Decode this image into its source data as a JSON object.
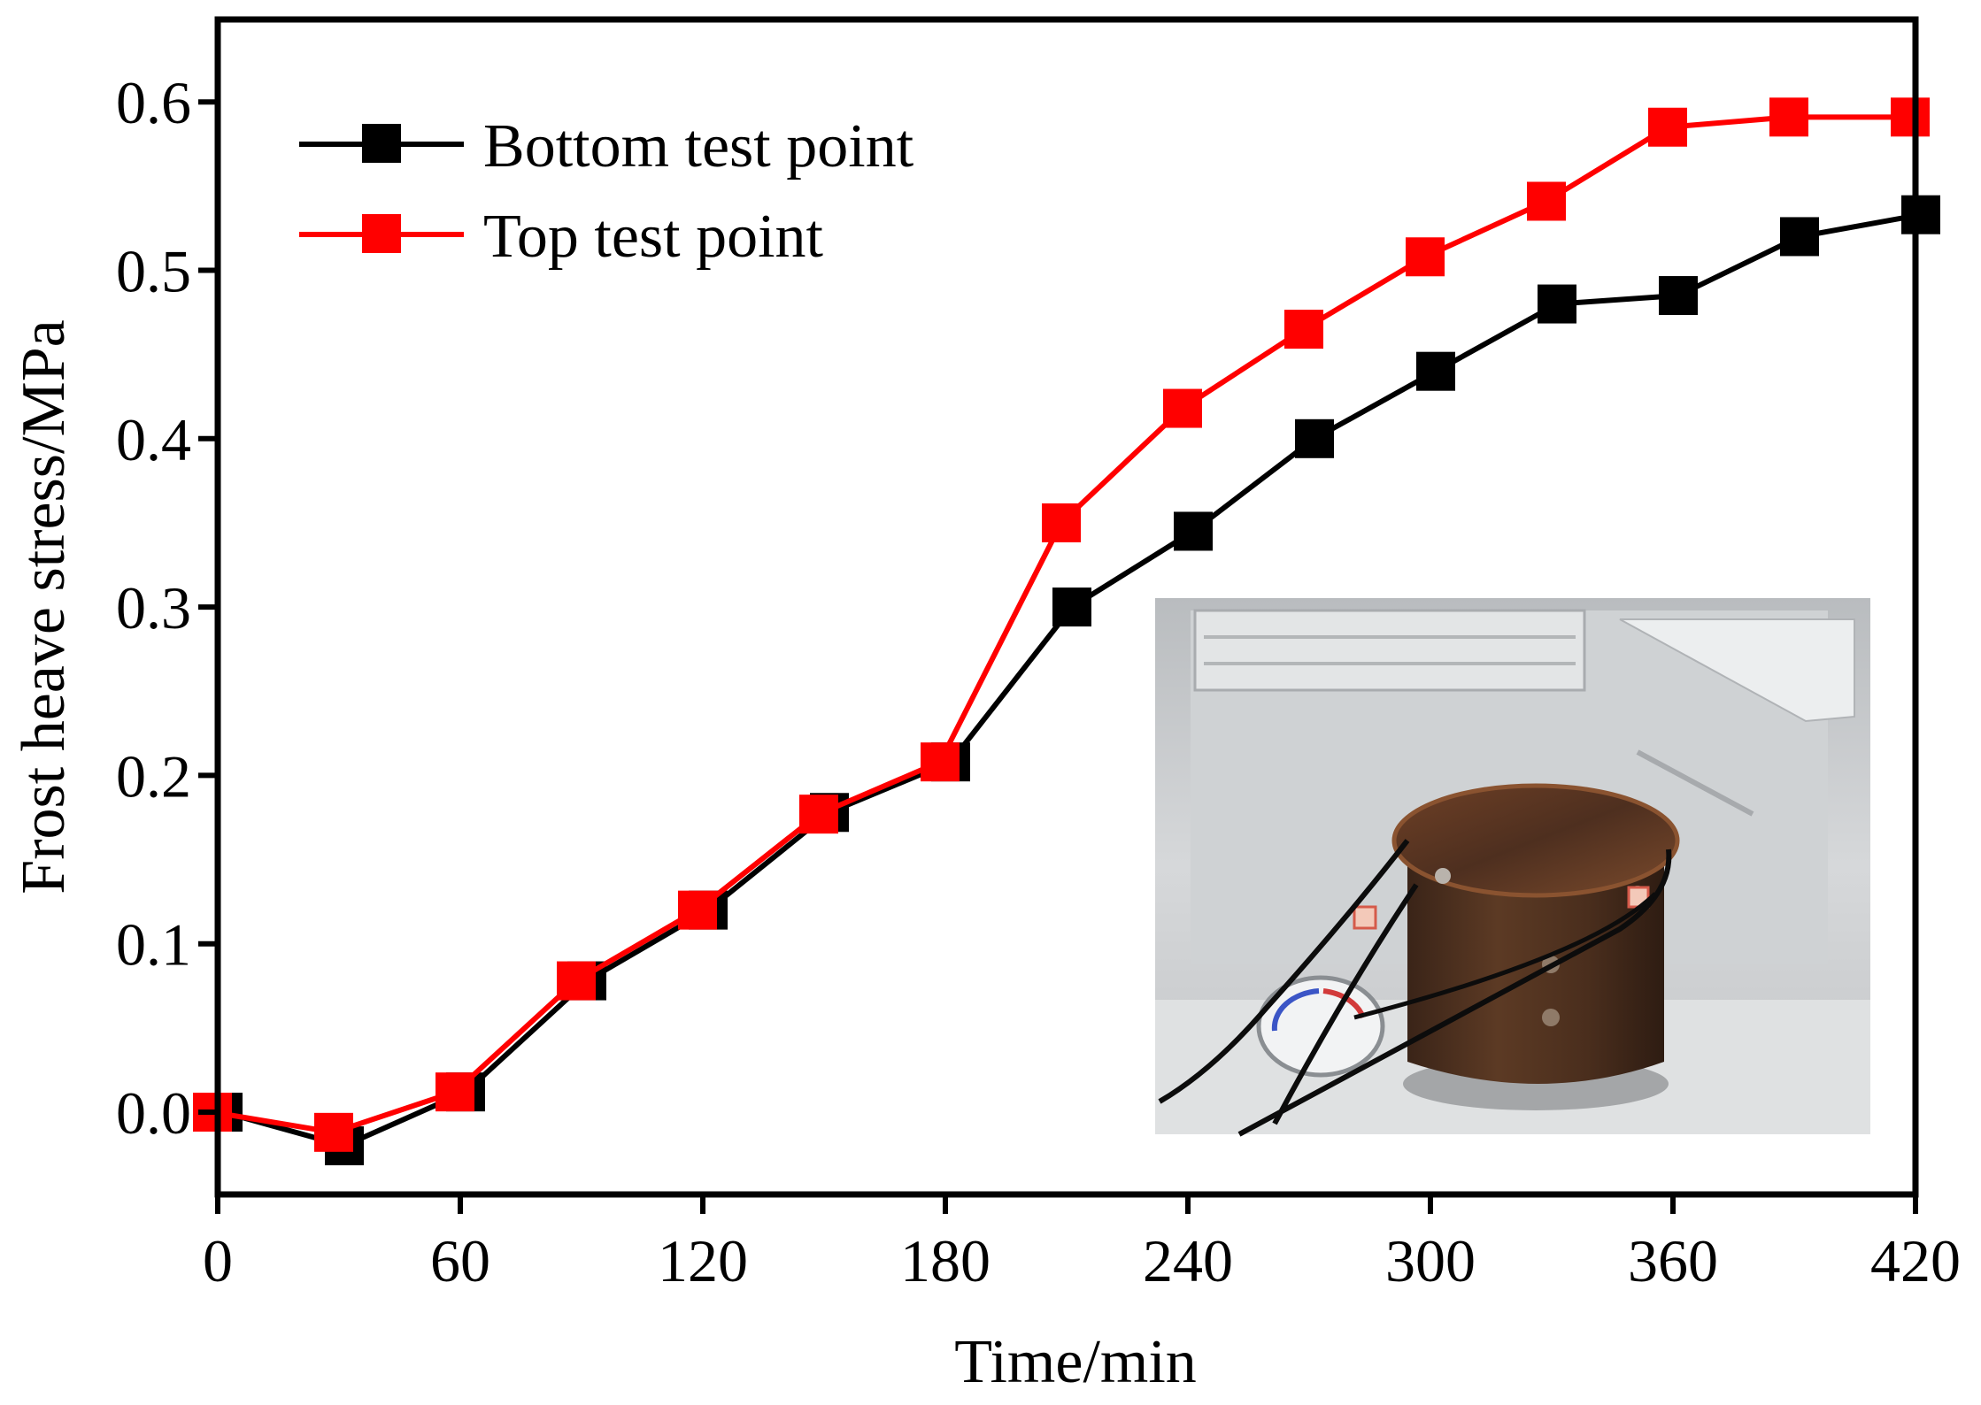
{
  "chart_data": {
    "type": "line",
    "xlabel": "Time/min",
    "ylabel": "Frost heave stress/MPa",
    "xlim": [
      0,
      420
    ],
    "ylim": [
      -0.05,
      0.65
    ],
    "xticks": [
      0,
      60,
      120,
      180,
      240,
      300,
      360,
      420
    ],
    "yticks": [
      0.0,
      0.1,
      0.2,
      0.3,
      0.4,
      0.5,
      0.6
    ],
    "xtick_labels": [
      "0",
      "60",
      "120",
      "180",
      "240",
      "300",
      "360",
      "420"
    ],
    "ytick_labels": [
      "0.0",
      "0.1",
      "0.2",
      "0.3",
      "0.4",
      "0.5",
      "0.6"
    ],
    "grid": false,
    "legend_position": "top-left",
    "series": [
      {
        "name": "Bottom test point",
        "color": "#000000",
        "marker": "square",
        "x": [
          0,
          30,
          60,
          90,
          120,
          150,
          180,
          210,
          240,
          270,
          300,
          330,
          360,
          390,
          420
        ],
        "y": [
          0.0,
          -0.02,
          0.012,
          0.078,
          0.12,
          0.178,
          0.208,
          0.3,
          0.345,
          0.4,
          0.44,
          0.48,
          0.485,
          0.52,
          0.533
        ]
      },
      {
        "name": "Top test point",
        "color": "#ff0000",
        "marker": "square",
        "x": [
          0,
          30,
          60,
          90,
          120,
          150,
          180,
          210,
          240,
          270,
          300,
          330,
          360,
          390,
          420
        ],
        "y": [
          0.0,
          -0.012,
          0.012,
          0.078,
          0.12,
          0.177,
          0.208,
          0.35,
          0.418,
          0.465,
          0.508,
          0.541,
          0.585,
          0.591,
          0.591
        ]
      }
    ],
    "inset_image": "photo of rusty cylindrical test container with wires inside a freezer"
  }
}
